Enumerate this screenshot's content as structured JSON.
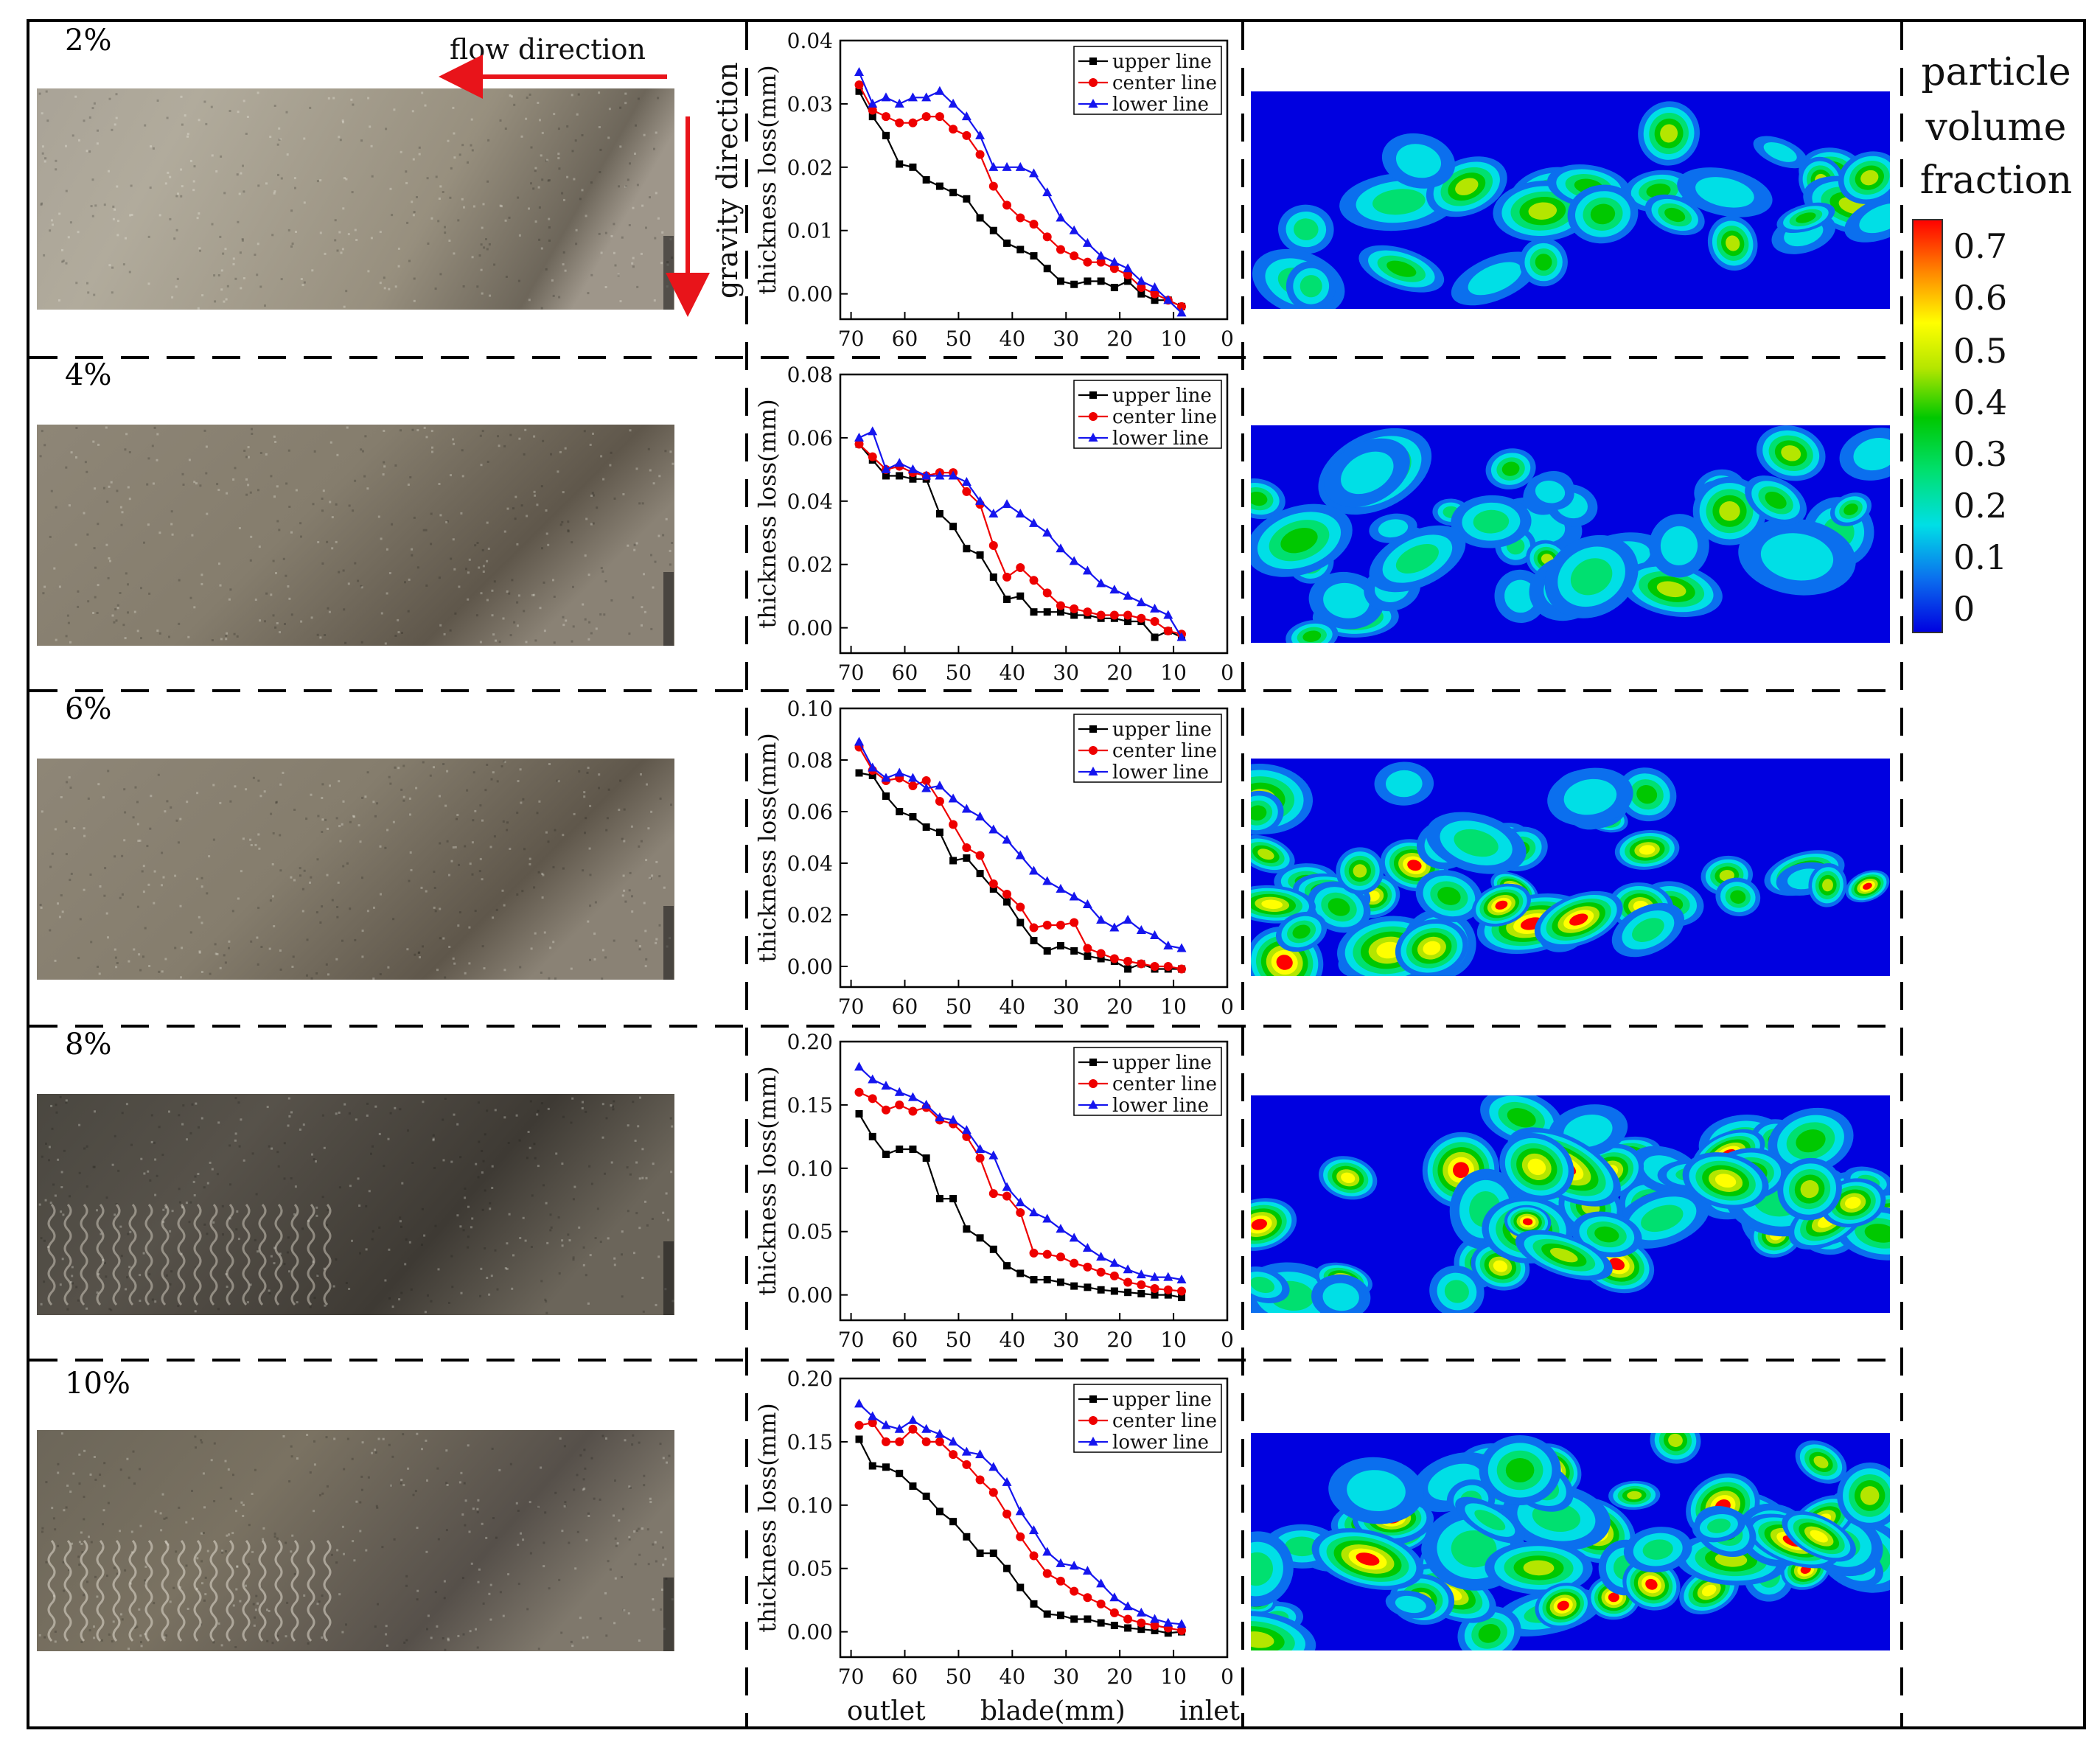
{
  "percent_labels": [
    "2%",
    "4%",
    "6%",
    "8%",
    "10%"
  ],
  "annotations": {
    "flow_direction": "flow direction",
    "gravity_direction": "gravity direction",
    "outlet": "outlet",
    "blade": "blade(mm)",
    "inlet": "inlet"
  },
  "colorbar": {
    "title_lines": [
      "particle",
      "volume",
      "fraction"
    ],
    "ticks": [
      "0.7",
      "0.6",
      "0.5",
      "0.4",
      "0.3",
      "0.2",
      "0.1",
      "0"
    ],
    "colors": [
      "#0000e0",
      "#0b6fee",
      "#00dfe6",
      "#00e070",
      "#00c800",
      "#b4e600",
      "#ffff00",
      "#ff8a00",
      "#ff0000"
    ]
  },
  "series_colors": {
    "upper line": "#000000",
    "center line": "#ee0000",
    "lower line": "#1515ee"
  },
  "chart_data": [
    {
      "type": "line",
      "percent": "2%",
      "ylabel": "thickness loss(mm)",
      "xlabel": "",
      "xlim": [
        0,
        72
      ],
      "x_reversed": true,
      "ylim": [
        -0.004,
        0.04
      ],
      "yticks": [
        "0.00",
        "0.01",
        "0.02",
        "0.03",
        "0.04"
      ],
      "xticks": [
        "70",
        "60",
        "50",
        "40",
        "30",
        "20",
        "10",
        "0"
      ],
      "x": [
        68.5,
        66,
        63.5,
        61,
        58.5,
        56,
        53.5,
        51,
        48.5,
        46,
        43.5,
        41,
        38.5,
        36,
        33.5,
        31,
        28.5,
        26,
        23.5,
        21,
        18.5,
        16,
        13.5,
        11,
        8.5
      ],
      "series": [
        {
          "name": "upper line",
          "values": [
            0.032,
            0.028,
            0.025,
            0.0205,
            0.02,
            0.018,
            0.017,
            0.016,
            0.015,
            0.012,
            0.01,
            0.008,
            0.007,
            0.006,
            0.004,
            0.002,
            0.0015,
            0.002,
            0.002,
            0.001,
            0.002,
            0.0,
            -0.001,
            -0.001,
            -0.002
          ]
        },
        {
          "name": "center line",
          "values": [
            0.033,
            0.029,
            0.028,
            0.027,
            0.027,
            0.028,
            0.028,
            0.026,
            0.025,
            0.022,
            0.017,
            0.014,
            0.012,
            0.011,
            0.009,
            0.007,
            0.006,
            0.005,
            0.005,
            0.004,
            0.003,
            0.001,
            0.0,
            -0.001,
            -0.002
          ]
        },
        {
          "name": "lower line",
          "values": [
            0.035,
            0.03,
            0.031,
            0.03,
            0.031,
            0.031,
            0.032,
            0.03,
            0.028,
            0.025,
            0.02,
            0.02,
            0.02,
            0.019,
            0.016,
            0.012,
            0.01,
            0.008,
            0.006,
            0.005,
            0.004,
            0.002,
            0.001,
            -0.001,
            -0.003
          ]
        }
      ]
    },
    {
      "type": "line",
      "percent": "4%",
      "ylabel": "thickness loss(mm)",
      "xlabel": "",
      "xlim": [
        0,
        72
      ],
      "x_reversed": true,
      "ylim": [
        -0.008,
        0.08
      ],
      "yticks": [
        "0.00",
        "0.02",
        "0.04",
        "0.06",
        "0.08"
      ],
      "xticks": [
        "70",
        "60",
        "50",
        "40",
        "30",
        "20",
        "10",
        "0"
      ],
      "x": [
        68.5,
        66,
        63.5,
        61,
        58.5,
        56,
        53.5,
        51,
        48.5,
        46,
        43.5,
        41,
        38.5,
        36,
        33.5,
        31,
        28.5,
        26,
        23.5,
        21,
        18.5,
        16,
        13.5,
        11,
        8.5
      ],
      "series": [
        {
          "name": "upper line",
          "values": [
            0.058,
            0.053,
            0.048,
            0.048,
            0.047,
            0.047,
            0.036,
            0.032,
            0.025,
            0.023,
            0.016,
            0.009,
            0.01,
            0.005,
            0.005,
            0.005,
            0.004,
            0.004,
            0.003,
            0.003,
            0.002,
            0.002,
            -0.003,
            -0.001,
            -0.003
          ]
        },
        {
          "name": "center line",
          "values": [
            0.058,
            0.054,
            0.05,
            0.051,
            0.049,
            0.048,
            0.049,
            0.049,
            0.043,
            0.039,
            0.026,
            0.016,
            0.019,
            0.015,
            0.011,
            0.007,
            0.006,
            0.005,
            0.004,
            0.004,
            0.004,
            0.003,
            0.002,
            -0.001,
            -0.002
          ]
        },
        {
          "name": "lower line",
          "values": [
            0.06,
            0.062,
            0.05,
            0.052,
            0.05,
            0.048,
            0.048,
            0.048,
            0.046,
            0.04,
            0.036,
            0.039,
            0.036,
            0.033,
            0.03,
            0.025,
            0.021,
            0.018,
            0.014,
            0.012,
            0.01,
            0.008,
            0.006,
            0.004,
            -0.003
          ]
        }
      ]
    },
    {
      "type": "line",
      "percent": "6%",
      "ylabel": "thickness loss(mm)",
      "xlabel": "",
      "xlim": [
        0,
        72
      ],
      "x_reversed": true,
      "ylim": [
        -0.008,
        0.1
      ],
      "yticks": [
        "0.00",
        "0.02",
        "0.04",
        "0.06",
        "0.08",
        "0.10"
      ],
      "xticks": [
        "70",
        "60",
        "50",
        "40",
        "30",
        "20",
        "10",
        "0"
      ],
      "x": [
        68.5,
        66,
        63.5,
        61,
        58.5,
        56,
        53.5,
        51,
        48.5,
        46,
        43.5,
        41,
        38.5,
        36,
        33.5,
        31,
        28.5,
        26,
        23.5,
        21,
        18.5,
        16,
        13.5,
        11,
        8.5
      ],
      "series": [
        {
          "name": "upper line",
          "values": [
            0.075,
            0.074,
            0.066,
            0.06,
            0.058,
            0.054,
            0.052,
            0.041,
            0.042,
            0.036,
            0.03,
            0.025,
            0.017,
            0.01,
            0.006,
            0.008,
            0.006,
            0.004,
            0.003,
            0.002,
            -0.001,
            0.001,
            -0.001,
            -0.001,
            -0.001
          ]
        },
        {
          "name": "center line",
          "values": [
            0.085,
            0.076,
            0.072,
            0.073,
            0.07,
            0.072,
            0.064,
            0.055,
            0.046,
            0.043,
            0.032,
            0.028,
            0.023,
            0.015,
            0.016,
            0.016,
            0.017,
            0.007,
            0.005,
            0.003,
            0.002,
            0.001,
            0.0,
            0.0,
            -0.001
          ]
        },
        {
          "name": "lower line",
          "values": [
            0.087,
            0.077,
            0.073,
            0.075,
            0.073,
            0.069,
            0.07,
            0.065,
            0.061,
            0.058,
            0.053,
            0.049,
            0.043,
            0.037,
            0.033,
            0.03,
            0.027,
            0.024,
            0.018,
            0.015,
            0.018,
            0.014,
            0.012,
            0.008,
            0.007
          ]
        }
      ]
    },
    {
      "type": "line",
      "percent": "8%",
      "ylabel": "thickness loss(mm)",
      "xlabel": "",
      "xlim": [
        0,
        72
      ],
      "x_reversed": true,
      "ylim": [
        -0.02,
        0.2
      ],
      "yticks": [
        "0.00",
        "0.05",
        "0.10",
        "0.15",
        "0.20"
      ],
      "xticks": [
        "70",
        "60",
        "50",
        "40",
        "30",
        "20",
        "10",
        "0"
      ],
      "x": [
        68.5,
        66,
        63.5,
        61,
        58.5,
        56,
        53.5,
        51,
        48.5,
        46,
        43.5,
        41,
        38.5,
        36,
        33.5,
        31,
        28.5,
        26,
        23.5,
        21,
        18.5,
        16,
        13.5,
        11,
        8.5
      ],
      "series": [
        {
          "name": "upper line",
          "values": [
            0.143,
            0.125,
            0.111,
            0.115,
            0.115,
            0.108,
            0.076,
            0.076,
            0.052,
            0.045,
            0.036,
            0.023,
            0.017,
            0.012,
            0.012,
            0.01,
            0.007,
            0.006,
            0.004,
            0.003,
            0.002,
            0.001,
            0.0,
            0.0,
            -0.002
          ]
        },
        {
          "name": "center line",
          "values": [
            0.16,
            0.155,
            0.146,
            0.15,
            0.145,
            0.148,
            0.138,
            0.135,
            0.125,
            0.108,
            0.08,
            0.078,
            0.065,
            0.033,
            0.032,
            0.03,
            0.025,
            0.022,
            0.018,
            0.015,
            0.01,
            0.008,
            0.005,
            0.004,
            0.003
          ]
        },
        {
          "name": "lower line",
          "values": [
            0.18,
            0.17,
            0.165,
            0.16,
            0.156,
            0.15,
            0.14,
            0.138,
            0.13,
            0.115,
            0.11,
            0.085,
            0.073,
            0.065,
            0.06,
            0.052,
            0.045,
            0.037,
            0.03,
            0.025,
            0.02,
            0.016,
            0.014,
            0.014,
            0.012
          ]
        }
      ]
    },
    {
      "type": "line",
      "percent": "10%",
      "ylabel": "thickness loss(mm)",
      "xlabel": "blade(mm)",
      "xlim": [
        0,
        72
      ],
      "x_reversed": true,
      "ylim": [
        -0.02,
        0.2
      ],
      "yticks": [
        "0.00",
        "0.05",
        "0.10",
        "0.15",
        "0.20"
      ],
      "xticks": [
        "70",
        "60",
        "50",
        "40",
        "30",
        "20",
        "10",
        "0"
      ],
      "x": [
        68.5,
        66,
        63.5,
        61,
        58.5,
        56,
        53.5,
        51,
        48.5,
        46,
        43.5,
        41,
        38.5,
        36,
        33.5,
        31,
        28.5,
        26,
        23.5,
        21,
        18.5,
        16,
        13.5,
        11,
        8.5
      ],
      "series": [
        {
          "name": "upper line",
          "values": [
            0.152,
            0.131,
            0.13,
            0.125,
            0.115,
            0.107,
            0.095,
            0.087,
            0.075,
            0.062,
            0.062,
            0.05,
            0.035,
            0.022,
            0.014,
            0.013,
            0.01,
            0.01,
            0.007,
            0.005,
            0.003,
            0.002,
            0.001,
            -0.001,
            0.0
          ]
        },
        {
          "name": "center line",
          "values": [
            0.163,
            0.165,
            0.15,
            0.15,
            0.16,
            0.15,
            0.15,
            0.14,
            0.132,
            0.12,
            0.11,
            0.093,
            0.075,
            0.06,
            0.046,
            0.04,
            0.032,
            0.027,
            0.022,
            0.015,
            0.01,
            0.007,
            0.005,
            0.003,
            0.001
          ]
        },
        {
          "name": "lower line",
          "values": [
            0.18,
            0.17,
            0.163,
            0.16,
            0.167,
            0.16,
            0.156,
            0.15,
            0.142,
            0.14,
            0.13,
            0.118,
            0.095,
            0.08,
            0.063,
            0.054,
            0.052,
            0.048,
            0.038,
            0.027,
            0.02,
            0.015,
            0.01,
            0.007,
            0.006
          ]
        }
      ]
    }
  ]
}
